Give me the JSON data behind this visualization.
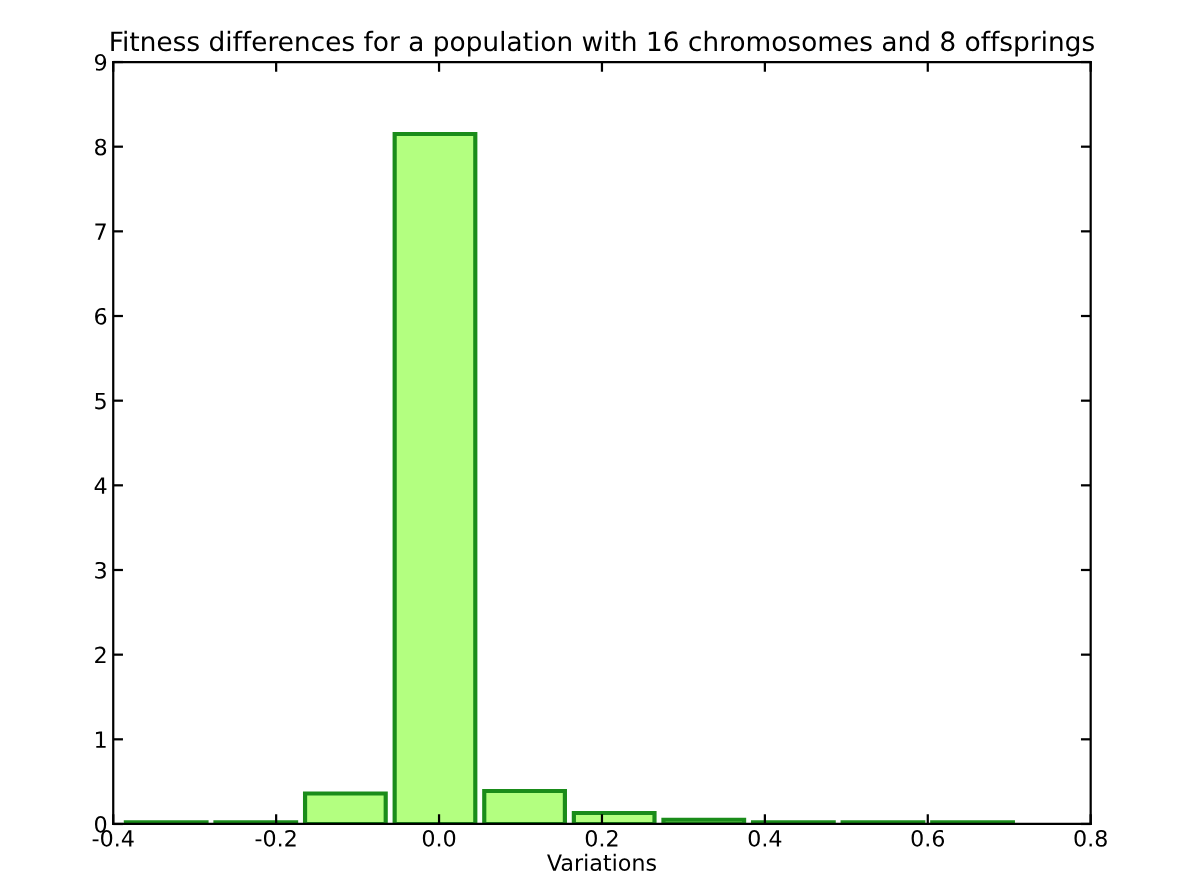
{
  "chart_data": {
    "type": "histogram",
    "title": "Fitness differences for a population with 16 chromosomes and 8 offsprings",
    "xlabel": "Variations",
    "bins": [
      -0.39,
      -0.28,
      -0.17,
      -0.06,
      0.05,
      0.16,
      0.27,
      0.38,
      0.49,
      0.6,
      0.71
    ],
    "values": [
      0.02,
      0.02,
      0.36,
      8.15,
      0.39,
      0.13,
      0.05,
      0.02,
      0.02,
      0.02
    ],
    "color": "#b3ff80",
    "xlim": [
      -0.4,
      0.8
    ],
    "xticks": [
      -0.4,
      -0.2,
      {
        "value": 0,
        "label": "0.0"
      },
      0.2,
      0.4,
      0.6,
      0.8
    ],
    "ylim": [
      0,
      9
    ],
    "yticks": [
      0,
      1,
      2,
      3,
      4,
      5,
      6,
      7,
      8,
      9
    ],
    "grid": false
  }
}
